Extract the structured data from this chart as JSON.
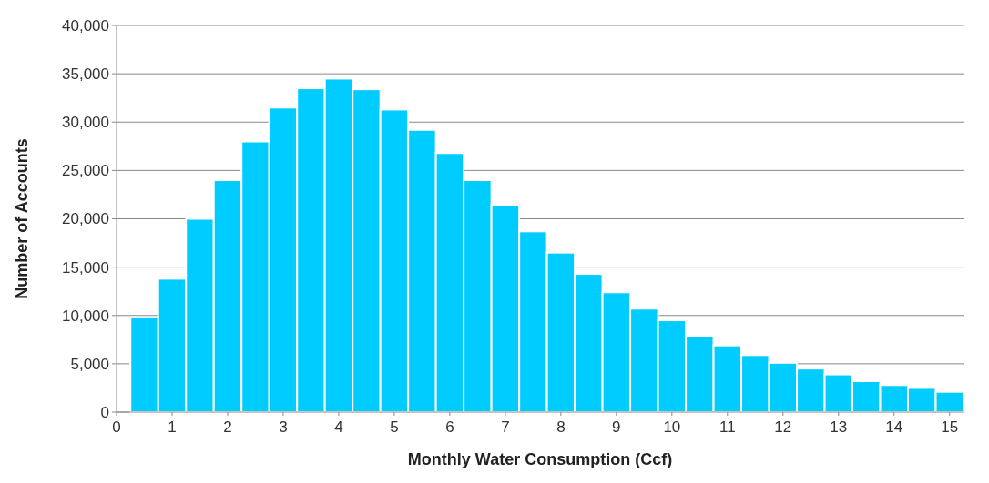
{
  "chart_data": {
    "type": "histogram",
    "xlabel": "Monthly Water Consumption (Ccf)",
    "ylabel": "Number of Accounts",
    "color": "#00ccff",
    "bins": [
      0.25,
      0.75,
      1.25,
      1.75,
      2.25,
      2.75,
      3.25,
      3.75,
      4.25,
      4.75,
      5.25,
      5.75,
      6.25,
      6.75,
      7.25,
      7.75,
      8.25,
      8.75,
      9.25,
      9.75,
      10.25,
      10.75,
      11.25,
      11.75,
      12.25,
      12.75,
      13.25,
      13.75,
      14.25,
      14.75,
      15.25
    ],
    "values": [
      9800,
      13800,
      20000,
      24000,
      28000,
      31500,
      33500,
      34500,
      33400,
      31300,
      29200,
      26800,
      24000,
      21400,
      18700,
      16500,
      14300,
      12400,
      10700,
      9500,
      7900,
      6900,
      5900,
      5100,
      4500,
      3900,
      3200,
      2800,
      2500,
      2100
    ],
    "xlim": [
      0,
      15.25
    ],
    "xticks": [
      0,
      1,
      2,
      3,
      4,
      5,
      6,
      7,
      8,
      9,
      10,
      11,
      12,
      13,
      14,
      15
    ],
    "ylim": [
      0,
      40000
    ],
    "yticks": [
      {
        "value": 0,
        "label": "0"
      },
      {
        "value": 5000,
        "label": "5,000"
      },
      {
        "value": 10000,
        "label": "10,000"
      },
      {
        "value": 15000,
        "label": "15,000"
      },
      {
        "value": 20000,
        "label": "20,000"
      },
      {
        "value": 25000,
        "label": "25,000"
      },
      {
        "value": 30000,
        "label": "30,000"
      },
      {
        "value": 35000,
        "label": "35,000"
      },
      {
        "value": 40000,
        "label": "40,000"
      }
    ],
    "grid": "y"
  }
}
